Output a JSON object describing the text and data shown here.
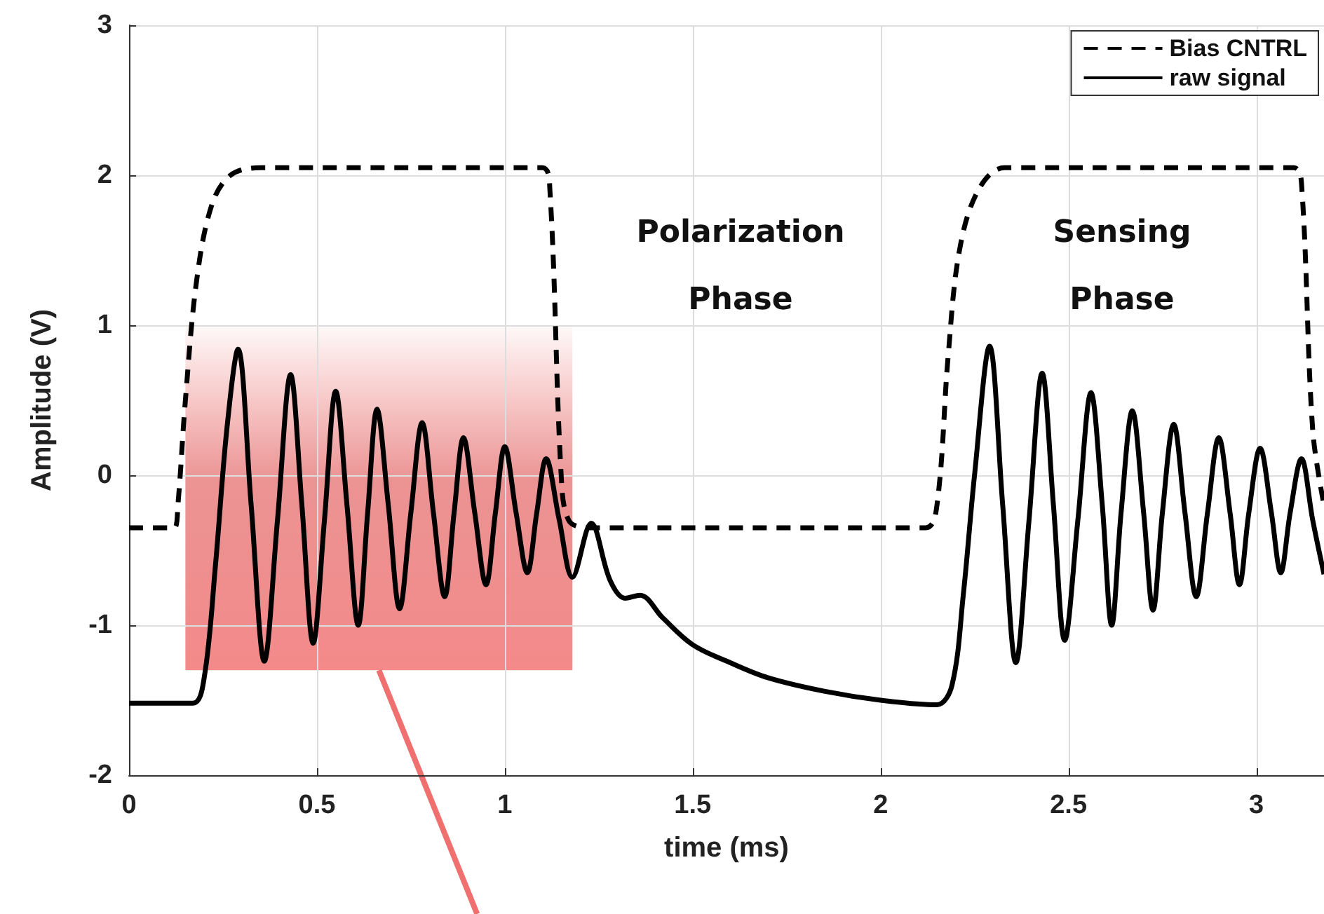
{
  "chart_data": {
    "type": "line",
    "xlabel": "time (ms)",
    "ylabel": "Amplitude (V)",
    "xlim": [
      0,
      3.18
    ],
    "xticks": [
      0,
      0.5,
      1,
      1.5,
      2,
      2.5,
      3
    ],
    "ylim": [
      -2,
      3
    ],
    "yticks": [
      -2,
      -1,
      0,
      1,
      2,
      3
    ],
    "grid": true,
    "legend": "top right",
    "marker": "none",
    "annotations": [
      "Polarization Phase",
      "Sensing Phase"
    ],
    "series": [
      {
        "name": "Bias CNTRL",
        "color": "#000000",
        "line_style": "dashed",
        "x": [
          0,
          0.12,
          0.13,
          0.15,
          0.18,
          0.22,
          0.27,
          0.35,
          1.1,
          1.12,
          1.15,
          1.17,
          1.22,
          2.12,
          2.15,
          2.18,
          2.21,
          2.26,
          2.33,
          3.1,
          3.12,
          3.15,
          3.18
        ],
        "values": [
          -0.35,
          -0.35,
          -0.2,
          0.5,
          1.3,
          1.8,
          2.0,
          2.05,
          2.05,
          1.9,
          0,
          -0.3,
          -0.35,
          -0.35,
          -0.2,
          0.8,
          1.5,
          1.9,
          2.05,
          2.05,
          1.95,
          0.3,
          -0.2
        ]
      },
      {
        "name": "raw signal",
        "color": "#000000",
        "line_style": "solid",
        "x": [
          0,
          0.17,
          0.2,
          0.23,
          0.26,
          0.29,
          0.325,
          0.36,
          0.395,
          0.43,
          0.46,
          0.49,
          0.52,
          0.55,
          0.58,
          0.61,
          0.635,
          0.66,
          0.69,
          0.72,
          0.75,
          0.78,
          0.81,
          0.84,
          0.865,
          0.89,
          0.92,
          0.95,
          0.975,
          1.0,
          1.03,
          1.06,
          1.085,
          1.11,
          1.145,
          1.18,
          1.23,
          1.28,
          1.32,
          1.36,
          1.42,
          1.5,
          1.6,
          1.7,
          1.85,
          2.0,
          2.15,
          2.19,
          2.22,
          2.25,
          2.29,
          2.325,
          2.36,
          2.395,
          2.43,
          2.46,
          2.49,
          2.525,
          2.56,
          2.59,
          2.615,
          2.64,
          2.67,
          2.7,
          2.725,
          2.75,
          2.78,
          2.81,
          2.84,
          2.87,
          2.9,
          2.93,
          2.955,
          2.98,
          3.01,
          3.04,
          3.065,
          3.09,
          3.12,
          3.15,
          3.18
        ],
        "values": [
          -1.52,
          -1.52,
          -1.35,
          -0.6,
          0.3,
          0.84,
          -0.2,
          -1.24,
          -0.3,
          0.67,
          -0.2,
          -1.12,
          -0.3,
          0.56,
          -0.2,
          -1.0,
          -0.25,
          0.44,
          -0.2,
          -0.89,
          -0.25,
          0.35,
          -0.25,
          -0.81,
          -0.25,
          0.25,
          -0.25,
          -0.73,
          -0.25,
          0.19,
          -0.25,
          -0.65,
          -0.25,
          0.11,
          -0.3,
          -0.68,
          -0.32,
          -0.7,
          -0.82,
          -0.8,
          -0.95,
          -1.13,
          -1.25,
          -1.35,
          -1.44,
          -1.5,
          -1.53,
          -1.4,
          -0.8,
          0.0,
          0.86,
          -0.2,
          -1.25,
          -0.3,
          0.68,
          -0.2,
          -1.1,
          -0.3,
          0.55,
          -0.2,
          -1.0,
          -0.25,
          0.43,
          -0.25,
          -0.9,
          -0.25,
          0.34,
          -0.25,
          -0.81,
          -0.25,
          0.25,
          -0.25,
          -0.73,
          -0.25,
          0.18,
          -0.25,
          -0.65,
          -0.25,
          0.11,
          -0.3,
          -0.66
        ]
      }
    ]
  }
}
